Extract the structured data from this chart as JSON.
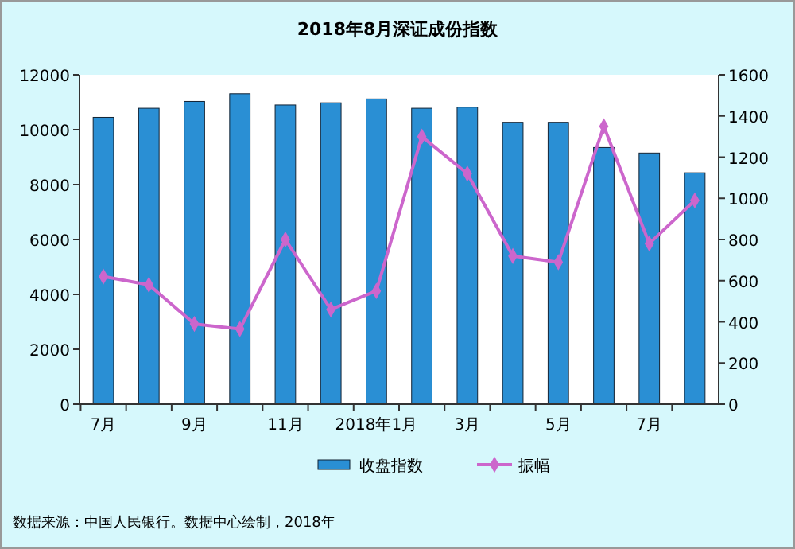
{
  "chart_data": {
    "type": "bar",
    "title": "2018年8月深证成份指数",
    "categories": [
      "7月",
      null,
      "9月",
      null,
      "11月",
      null,
      "2018年1月",
      null,
      "3月",
      null,
      "5月",
      null,
      "7月",
      null
    ],
    "series": [
      {
        "name": "收盘指数",
        "color": "#2a8fd4",
        "values": [
          10450,
          10780,
          11030,
          11310,
          10900,
          10980,
          11120,
          10780,
          10820,
          10270,
          10270,
          9350,
          9150,
          8430
        ]
      },
      {
        "name": "振幅",
        "type": "line",
        "axis": "y2",
        "color": "#cc66cc",
        "marker": "diamond",
        "values": [
          620,
          580,
          390,
          365,
          800,
          460,
          550,
          1300,
          1120,
          720,
          690,
          1350,
          780,
          990
        ]
      }
    ],
    "ylim": [
      0,
      12000
    ],
    "yticks": [
      0,
      2000,
      4000,
      6000,
      8000,
      10000,
      12000
    ],
    "y2lim": [
      0,
      1600
    ],
    "y2ticks": [
      0,
      200,
      400,
      600,
      800,
      1000,
      1200,
      1400,
      1600
    ],
    "legend": "bottom",
    "grid": false,
    "annotations": [
      "数据来源：中国人民银行。数据中心绘制，2018年"
    ]
  }
}
